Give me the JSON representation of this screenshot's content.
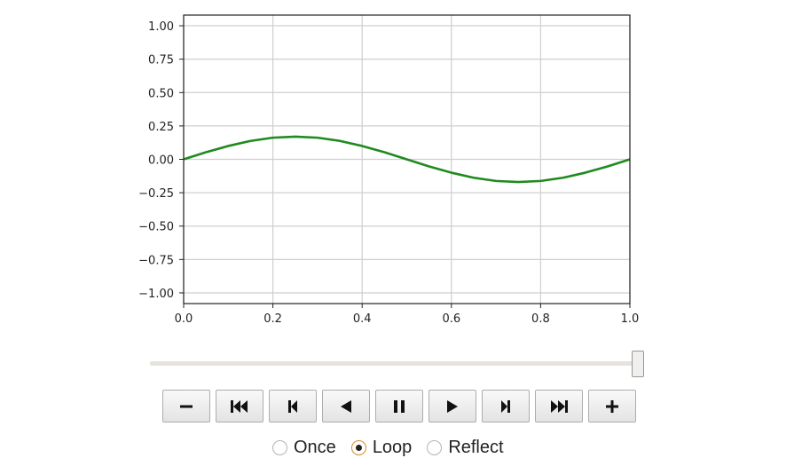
{
  "chart_data": {
    "type": "line",
    "title": "",
    "xlabel": "",
    "ylabel": "",
    "xlim": [
      0.0,
      1.0
    ],
    "ylim": [
      -1.08,
      1.08
    ],
    "x_ticks": [
      0.0,
      0.2,
      0.4,
      0.6,
      0.8,
      1.0
    ],
    "x_tick_labels": [
      "0.0",
      "0.2",
      "0.4",
      "0.6",
      "0.8",
      "1.0"
    ],
    "y_ticks": [
      1.0,
      0.75,
      0.5,
      0.25,
      0.0,
      -0.25,
      -0.5,
      -0.75,
      -1.0
    ],
    "y_tick_labels": [
      "1.00",
      "0.75",
      "0.50",
      "0.25",
      "0.00",
      "−0.25",
      "−0.50",
      "−0.75",
      "−1.00"
    ],
    "grid": true,
    "series": [
      {
        "color": "#1f8a1f",
        "function": "y = 0.17 * sin(2*pi*x)",
        "x": [
          0.0,
          0.05,
          0.1,
          0.15,
          0.2,
          0.25,
          0.3,
          0.35,
          0.4,
          0.45,
          0.5,
          0.55,
          0.6,
          0.65,
          0.7,
          0.75,
          0.8,
          0.85,
          0.9,
          0.95,
          1.0
        ],
        "values": [
          0.0,
          0.053,
          0.1,
          0.138,
          0.162,
          0.17,
          0.162,
          0.138,
          0.1,
          0.053,
          0.0,
          -0.053,
          -0.1,
          -0.138,
          -0.162,
          -0.17,
          -0.162,
          -0.138,
          -0.1,
          -0.053,
          0.0
        ]
      }
    ]
  },
  "slider": {
    "value": 1.0
  },
  "controls": {
    "buttons": [
      {
        "name": "decrease-speed-button",
        "icon": "minus-icon"
      },
      {
        "name": "first-frame-button",
        "icon": "skip-to-start-icon"
      },
      {
        "name": "previous-frame-button",
        "icon": "step-back-icon"
      },
      {
        "name": "play-reverse-button",
        "icon": "play-reverse-icon"
      },
      {
        "name": "pause-button",
        "icon": "pause-icon"
      },
      {
        "name": "play-button",
        "icon": "play-icon"
      },
      {
        "name": "next-frame-button",
        "icon": "step-forward-icon"
      },
      {
        "name": "last-frame-button",
        "icon": "skip-to-end-icon"
      },
      {
        "name": "increase-speed-button",
        "icon": "plus-icon"
      }
    ]
  },
  "modes": {
    "once_label": "Once",
    "loop_label": "Loop",
    "reflect_label": "Reflect",
    "selected": "loop"
  }
}
